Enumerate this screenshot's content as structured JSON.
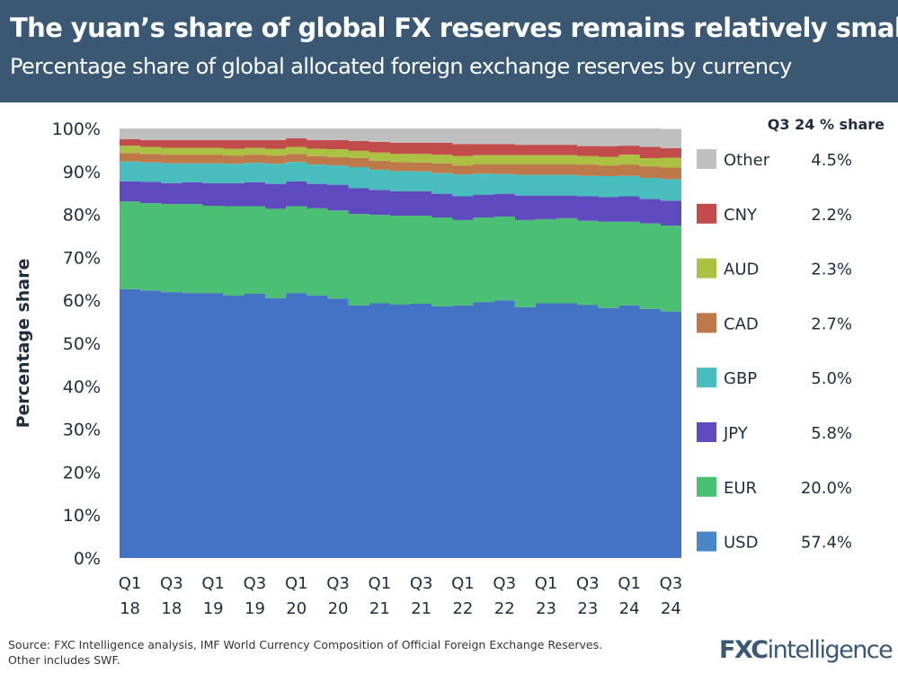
{
  "header": {
    "title": "The yuan’s share of global FX reserves remains relatively small",
    "subtitle": "Percentage share of global allocated foreign exchange reserves by currency"
  },
  "chart_data": {
    "type": "area",
    "stacked": true,
    "step": true,
    "ylabel": "Percentage share",
    "xlabel": "",
    "ylim": [
      0,
      100
    ],
    "y_ticks": [
      "0%",
      "10%",
      "20%",
      "30%",
      "40%",
      "50%",
      "60%",
      "70%",
      "80%",
      "90%",
      "100%"
    ],
    "x": [
      "Q1 18",
      "Q2 18",
      "Q3 18",
      "Q4 18",
      "Q1 19",
      "Q2 19",
      "Q3 19",
      "Q4 19",
      "Q1 20",
      "Q2 20",
      "Q3 20",
      "Q4 20",
      "Q1 21",
      "Q2 21",
      "Q3 21",
      "Q4 21",
      "Q1 22",
      "Q2 22",
      "Q3 22",
      "Q4 22",
      "Q1 23",
      "Q2 23",
      "Q3 23",
      "Q4 23",
      "Q1 24",
      "Q2 24",
      "Q3 24"
    ],
    "x_tick_labels": [
      [
        "Q1",
        "18"
      ],
      [
        "Q3",
        "18"
      ],
      [
        "Q1",
        "19"
      ],
      [
        "Q3",
        "19"
      ],
      [
        "Q1",
        "20"
      ],
      [
        "Q3",
        "20"
      ],
      [
        "Q1",
        "21"
      ],
      [
        "Q3",
        "21"
      ],
      [
        "Q1",
        "22"
      ],
      [
        "Q3",
        "22"
      ],
      [
        "Q1",
        "23"
      ],
      [
        "Q3",
        "23"
      ],
      [
        "Q1",
        "24"
      ],
      [
        "Q3",
        "24"
      ]
    ],
    "grid": false,
    "legend_placement": "right",
    "legend_title": "Q3 24 % share",
    "series": [
      {
        "name": "USD",
        "color": "#4472c4",
        "legend_color": "#4a86c5",
        "latest": "57.4%",
        "values": [
          62.6,
          62.3,
          61.9,
          61.7,
          61.7,
          61.1,
          61.5,
          60.5,
          61.7,
          61.1,
          60.4,
          58.8,
          59.3,
          59.0,
          59.2,
          58.6,
          58.8,
          59.6,
          60.0,
          58.4,
          59.3,
          59.3,
          58.9,
          58.2,
          58.8,
          58.0,
          57.4
        ]
      },
      {
        "name": "EUR",
        "color": "#4bbf73",
        "legend_color": "#4bbf73",
        "latest": "20.0%",
        "values": [
          20.4,
          20.3,
          20.5,
          20.7,
          20.3,
          20.8,
          20.4,
          20.8,
          20.2,
          20.3,
          20.5,
          21.3,
          20.6,
          20.7,
          20.5,
          20.7,
          19.9,
          19.7,
          19.5,
          20.3,
          19.6,
          19.8,
          19.6,
          20.1,
          19.5,
          19.9,
          20.0
        ]
      },
      {
        "name": "JPY",
        "color": "#5f4bbf",
        "legend_color": "#5f4bbf",
        "latest": "5.8%",
        "values": [
          4.7,
          5.0,
          4.9,
          5.1,
          5.3,
          5.4,
          5.6,
          5.8,
          5.8,
          5.7,
          6.0,
          6.0,
          5.8,
          5.7,
          5.7,
          5.5,
          5.5,
          5.3,
          5.3,
          5.7,
          5.5,
          5.3,
          5.7,
          5.7,
          5.9,
          5.7,
          5.8
        ]
      },
      {
        "name": "GBP",
        "color": "#49bdbd",
        "legend_color": "#49bdbd",
        "latest": "5.0%",
        "values": [
          4.6,
          4.5,
          4.6,
          4.4,
          4.6,
          4.5,
          4.5,
          4.7,
          4.5,
          4.5,
          4.5,
          4.9,
          4.7,
          4.7,
          4.6,
          4.8,
          5.1,
          4.9,
          4.6,
          4.8,
          4.8,
          4.8,
          4.8,
          4.9,
          4.8,
          4.9,
          5.0
        ]
      },
      {
        "name": "CAD",
        "color": "#be794a",
        "legend_color": "#be794a",
        "latest": "2.7%",
        "values": [
          2.0,
          2.0,
          2.0,
          2.0,
          2.0,
          1.9,
          1.9,
          1.9,
          1.9,
          2.0,
          1.9,
          2.1,
          2.1,
          2.1,
          2.1,
          2.3,
          2.1,
          2.2,
          2.3,
          2.5,
          2.5,
          2.5,
          2.6,
          2.5,
          2.6,
          2.7,
          2.7
        ]
      },
      {
        "name": "AUD",
        "color": "#acc043",
        "legend_color": "#acc043",
        "latest": "2.3%",
        "values": [
          1.7,
          1.6,
          1.6,
          1.6,
          1.6,
          1.6,
          1.6,
          1.6,
          1.6,
          1.7,
          1.9,
          1.7,
          1.9,
          1.9,
          2.0,
          2.0,
          2.2,
          2.1,
          2.1,
          2.1,
          2.1,
          2.1,
          2.0,
          2.0,
          2.3,
          1.9,
          2.3
        ]
      },
      {
        "name": "CNY",
        "color": "#c24b4b",
        "legend_color": "#c24b4b",
        "latest": "2.2%",
        "values": [
          1.5,
          1.6,
          1.8,
          1.8,
          1.8,
          2.0,
          1.8,
          2.0,
          2.0,
          2.0,
          2.1,
          2.3,
          2.5,
          2.6,
          2.6,
          2.8,
          2.8,
          2.6,
          2.6,
          2.4,
          2.4,
          2.4,
          2.3,
          2.5,
          2.1,
          2.6,
          2.2
        ]
      },
      {
        "name": "Other",
        "color": "#bfbfbf",
        "legend_color": "#bfbfbf",
        "latest": "4.5%",
        "values": [
          2.5,
          2.7,
          2.7,
          2.7,
          2.7,
          2.7,
          2.7,
          2.7,
          2.3,
          2.7,
          2.7,
          2.9,
          3.1,
          3.3,
          3.3,
          3.3,
          3.6,
          3.6,
          3.6,
          3.8,
          3.8,
          3.8,
          4.1,
          4.1,
          4.0,
          4.3,
          4.5
        ]
      }
    ]
  },
  "footer": {
    "source_line1": "Source: FXC Intelligence analysis, IMF World Currency Composition of Official Foreign Exchange Reserves.",
    "source_line2": "Other includes SWF.",
    "logo_text": "FXCintelligence"
  }
}
